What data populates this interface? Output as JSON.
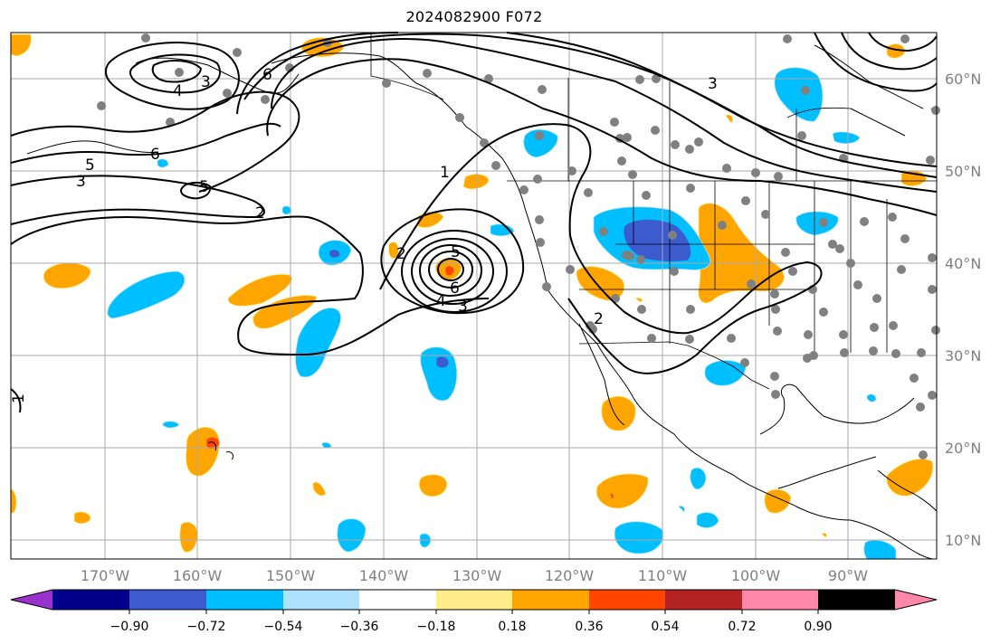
{
  "title": "2024082900 F072",
  "lat_labels": [
    "60°N",
    "50°N",
    "40°N",
    "30°N",
    "20°N",
    "10°N"
  ],
  "lon_labels": [
    "170°W",
    "160°W",
    "150°W",
    "140°W",
    "130°W",
    "120°W",
    "110°W",
    "100°W",
    "90°W"
  ],
  "colorbar": {
    "tick_labels": [
      "−0.90",
      "−0.72",
      "−0.54",
      "−0.36",
      "−0.18",
      "0.18",
      "0.36",
      "0.54",
      "0.72",
      "0.90"
    ],
    "colors": [
      "#9932cc",
      "#00008b",
      "#3b5bcf",
      "#00bfff",
      "#ade0fb",
      "#ffffff",
      "#ffec8b",
      "#ffa500",
      "#ff4500",
      "#b22222",
      "#ff88aa"
    ]
  },
  "contour_labels": [
    "3",
    "4",
    "6",
    "5",
    "6",
    "5",
    "3",
    "2",
    "1",
    "2",
    "5",
    "6",
    "4",
    "3",
    "2",
    "3",
    "1"
  ],
  "colors": {
    "orange": "#ffa500",
    "light_orange": "#ffec8b",
    "red": "#ff4500",
    "blue": "#00bfff",
    "dark_blue": "#3b5bcf",
    "light_blue": "#ade0fb",
    "gray_dot": "#808080",
    "grid": "#aaaaaa"
  }
}
